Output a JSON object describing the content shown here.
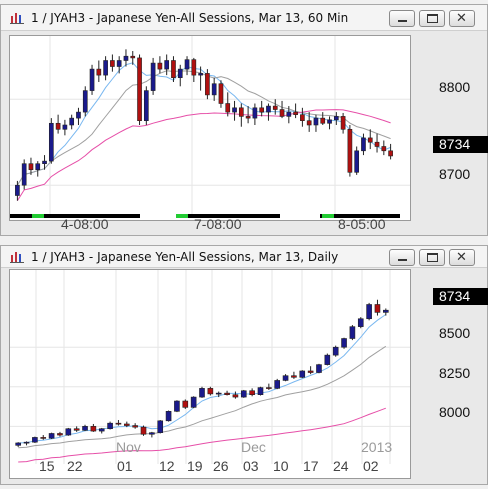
{
  "windows": [
    {
      "title": "1 / JYAH3 - Japanese Yen-All Sessions, Mar 13, 60 Min",
      "y_ticks": [
        "8800",
        "8700"
      ],
      "last_price": "8734",
      "x_labels": [
        "4-08:00",
        "7-08:00",
        "8-05:00"
      ]
    },
    {
      "title": "1 / JYAH3 - Japanese Yen-All Sessions, Mar 13, Daily",
      "y_ticks": [
        "8500",
        "8250",
        "8000"
      ],
      "last_price": "8734",
      "month_labels": [
        "Nov",
        "Dec",
        "2013"
      ],
      "day_labels": [
        "15",
        "22",
        "01",
        "12",
        "19",
        "26",
        "03",
        "10",
        "17",
        "24",
        "02"
      ]
    }
  ],
  "colors": {
    "up": "#1a1a8c",
    "down": "#b01010",
    "ma_fast": "#7ab8f0",
    "ma_mid": "#a0a0a0",
    "ma_slow": "#e64fa8",
    "session_bar": "#000000",
    "session_mark": "#22cc33"
  },
  "chart_data": [
    {
      "type": "candlestick",
      "title": "1 / JYAH3 - Japanese Yen-All Sessions, Mar 13, 60 Min",
      "ylim": [
        8670,
        8870
      ],
      "y_ticks": [
        8800,
        8700
      ],
      "x_labels": [
        "4-08:00",
        "7-08:00",
        "8-05:00"
      ],
      "last": 8734,
      "candles": [
        [
          8688,
          8705,
          8682,
          8700
        ],
        [
          8700,
          8730,
          8695,
          8725
        ],
        [
          8725,
          8732,
          8712,
          8718
        ],
        [
          8718,
          8728,
          8710,
          8725
        ],
        [
          8725,
          8735,
          8718,
          8728
        ],
        [
          8728,
          8778,
          8725,
          8772
        ],
        [
          8772,
          8782,
          8760,
          8765
        ],
        [
          8765,
          8776,
          8758,
          8770
        ],
        [
          8770,
          8782,
          8765,
          8778
        ],
        [
          8778,
          8790,
          8770,
          8785
        ],
        [
          8785,
          8815,
          8780,
          8810
        ],
        [
          8810,
          8840,
          8805,
          8835
        ],
        [
          8835,
          8845,
          8820,
          8828
        ],
        [
          8828,
          8850,
          8822,
          8845
        ],
        [
          8845,
          8852,
          8832,
          8838
        ],
        [
          8838,
          8850,
          8830,
          8845
        ],
        [
          8845,
          8858,
          8838,
          8850
        ],
        [
          8850,
          8856,
          8840,
          8848
        ],
        [
          8848,
          8852,
          8770,
          8775
        ],
        [
          8775,
          8815,
          8770,
          8810
        ],
        [
          8810,
          8848,
          8805,
          8842
        ],
        [
          8842,
          8850,
          8830,
          8835
        ],
        [
          8835,
          8852,
          8828,
          8845
        ],
        [
          8845,
          8850,
          8820,
          8825
        ],
        [
          8825,
          8840,
          8815,
          8835
        ],
        [
          8835,
          8850,
          8828,
          8846
        ],
        [
          8846,
          8848,
          8820,
          8828
        ],
        [
          8828,
          8838,
          8810,
          8830
        ],
        [
          8830,
          8835,
          8800,
          8805
        ],
        [
          8805,
          8825,
          8798,
          8818
        ],
        [
          8818,
          8822,
          8790,
          8795
        ],
        [
          8795,
          8808,
          8780,
          8785
        ],
        [
          8785,
          8798,
          8775,
          8790
        ],
        [
          8790,
          8795,
          8768,
          8780
        ],
        [
          8780,
          8792,
          8772,
          8778
        ],
        [
          8778,
          8795,
          8770,
          8790
        ],
        [
          8790,
          8798,
          8780,
          8785
        ],
        [
          8785,
          8795,
          8775,
          8792
        ],
        [
          8792,
          8800,
          8782,
          8788
        ],
        [
          8788,
          8798,
          8778,
          8780
        ],
        [
          8780,
          8792,
          8772,
          8785
        ],
        [
          8785,
          8795,
          8778,
          8782
        ],
        [
          8782,
          8790,
          8768,
          8775
        ],
        [
          8775,
          8785,
          8762,
          8770
        ],
        [
          8770,
          8782,
          8762,
          8778
        ],
        [
          8778,
          8785,
          8770,
          8772
        ],
        [
          8772,
          8780,
          8765,
          8776
        ],
        [
          8776,
          8785,
          8770,
          8780
        ],
        [
          8780,
          8784,
          8760,
          8765
        ],
        [
          8765,
          8770,
          8710,
          8715
        ],
        [
          8715,
          8745,
          8712,
          8740
        ],
        [
          8740,
          8760,
          8735,
          8755
        ],
        [
          8755,
          8765,
          8742,
          8750
        ],
        [
          8750,
          8760,
          8738,
          8745
        ],
        [
          8745,
          8752,
          8735,
          8740
        ],
        [
          8740,
          8748,
          8730,
          8734
        ]
      ]
    },
    {
      "type": "candlestick",
      "title": "1 / JYAH3 - Japanese Yen-All Sessions, Mar 13, Daily",
      "ylim": [
        7800,
        8950
      ],
      "y_ticks": [
        8500,
        8250,
        8000
      ],
      "month_labels": [
        "Nov",
        "Dec",
        "2013"
      ],
      "day_labels": [
        "15",
        "22",
        "01",
        "12",
        "19",
        "26",
        "03",
        "10",
        "17",
        "24",
        "02"
      ],
      "last": 8734,
      "candles": [
        [
          7880,
          7900,
          7870,
          7895
        ],
        [
          7895,
          7905,
          7880,
          7900
        ],
        [
          7900,
          7935,
          7895,
          7930
        ],
        [
          7930,
          7945,
          7915,
          7925
        ],
        [
          7925,
          7960,
          7920,
          7955
        ],
        [
          7955,
          7965,
          7935,
          7945
        ],
        [
          7945,
          7990,
          7940,
          7985
        ],
        [
          7985,
          8000,
          7965,
          7975
        ],
        [
          7975,
          8010,
          7970,
          8000
        ],
        [
          8000,
          8015,
          7965,
          7970
        ],
        [
          7970,
          7990,
          7955,
          7985
        ],
        [
          7985,
          8030,
          7980,
          8020
        ],
        [
          8020,
          8040,
          8005,
          8015
        ],
        [
          8015,
          8030,
          7995,
          8005
        ],
        [
          8005,
          8020,
          7985,
          7995
        ],
        [
          7995,
          8005,
          7940,
          7950
        ],
        [
          7950,
          7965,
          7930,
          7960
        ],
        [
          7960,
          8040,
          7955,
          8035
        ],
        [
          8035,
          8100,
          8030,
          8095
        ],
        [
          8095,
          8165,
          8090,
          8160
        ],
        [
          8160,
          8170,
          8110,
          8120
        ],
        [
          8120,
          8190,
          8115,
          8185
        ],
        [
          8185,
          8250,
          8180,
          8240
        ],
        [
          8240,
          8250,
          8195,
          8205
        ],
        [
          8205,
          8220,
          8185,
          8210
        ],
        [
          8210,
          8225,
          8195,
          8200
        ],
        [
          8200,
          8220,
          8175,
          8185
        ],
        [
          8185,
          8230,
          8180,
          8225
        ],
        [
          8225,
          8240,
          8190,
          8200
        ],
        [
          8200,
          8250,
          8195,
          8245
        ],
        [
          8245,
          8270,
          8230,
          8240
        ],
        [
          8240,
          8300,
          8235,
          8290
        ],
        [
          8290,
          8330,
          8285,
          8320
        ],
        [
          8320,
          8345,
          8300,
          8310
        ],
        [
          8310,
          8355,
          8305,
          8350
        ],
        [
          8350,
          8380,
          8330,
          8340
        ],
        [
          8340,
          8395,
          8335,
          8390
        ],
        [
          8390,
          8460,
          8385,
          8450
        ],
        [
          8450,
          8510,
          8440,
          8500
        ],
        [
          8500,
          8560,
          8490,
          8555
        ],
        [
          8555,
          8640,
          8545,
          8630
        ],
        [
          8630,
          8690,
          8620,
          8680
        ],
        [
          8680,
          8780,
          8670,
          8770
        ],
        [
          8770,
          8800,
          8700,
          8720
        ],
        [
          8720,
          8745,
          8700,
          8734
        ]
      ]
    }
  ]
}
